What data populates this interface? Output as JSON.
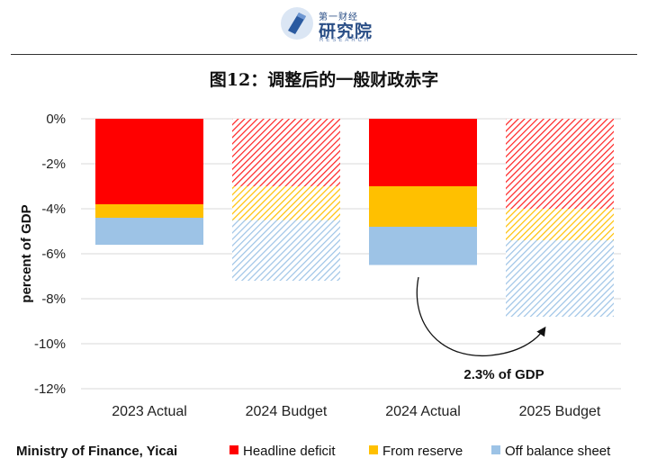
{
  "header": {
    "logo_top": "第一财经",
    "logo_main": "研究院",
    "logo_sub": "RESEARCH"
  },
  "title": "图12：调整后的一般财政赤字",
  "source": "Ministry of Finance, Yicai",
  "colors": {
    "headline": "#ff0000",
    "reserve": "#ffc000",
    "offbalance": "#9dc3e6"
  },
  "chart_data": {
    "type": "bar",
    "stacked": true,
    "categories": [
      "2023 Actual",
      "2024 Budget",
      "2024 Actual",
      "2025 Budget"
    ],
    "series": [
      {
        "name": "Headline deficit",
        "values": [
          -3.8,
          -3.0,
          -3.0,
          -4.0
        ]
      },
      {
        "name": "From reserve",
        "values": [
          -0.6,
          -1.5,
          -1.8,
          -1.4
        ]
      },
      {
        "name": "Off balance sheet",
        "values": [
          -1.2,
          -2.7,
          -1.7,
          -3.4
        ]
      }
    ],
    "hatched_categories": [
      "2024 Budget",
      "2025 Budget"
    ],
    "ylabel": "percent of GDP",
    "ylim": [
      -12,
      0
    ],
    "yticks": [
      0,
      -2,
      -4,
      -6,
      -8,
      -10,
      -12
    ],
    "ytick_labels": [
      "0%",
      "-2%",
      "-4%",
      "-6%",
      "-8%",
      "-10%",
      "-12%"
    ],
    "grid": true,
    "legend_position": "bottom",
    "annotation": {
      "text": "2.3% of GDP",
      "from": "2024 Actual",
      "to": "2025 Budget"
    }
  }
}
